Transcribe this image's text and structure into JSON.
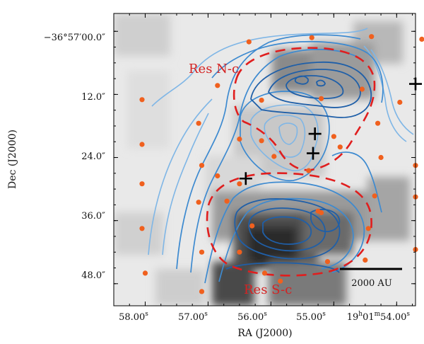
{
  "chart_data": {
    "type": "contour-map",
    "xlabel": "RA (J2000)",
    "ylabel": "Dec (J2000)",
    "x_ticks": [
      {
        "ra_s": 58.0,
        "label": "58.00",
        "sup": "s"
      },
      {
        "ra_s": 57.0,
        "label": "57.00",
        "sup": "s"
      },
      {
        "ra_s": 56.0,
        "label": "56.00",
        "sup": "s"
      },
      {
        "ra_s": 55.0,
        "label": "55.00",
        "sup": "s"
      },
      {
        "ra_s": 54.0,
        "label": "19h01m54.00s",
        "parts": [
          "19",
          "h",
          "01",
          "m",
          "54.00",
          "s"
        ]
      }
    ],
    "y_ticks": [
      {
        "dec_as": 0.0,
        "label": "−36°57′00.0″"
      },
      {
        "dec_as": 12.0,
        "label": "12.0″"
      },
      {
        "dec_as": 24.0,
        "label": "24.0″"
      },
      {
        "dec_as": 36.0,
        "label": "36.0″"
      },
      {
        "dec_as": 48.0,
        "label": "48.0″"
      }
    ],
    "xlim_ra_s": [
      58.5,
      53.7
    ],
    "ylim_dec_as": [
      -3.4,
      52.2
    ],
    "annotations": [
      {
        "text": "Res N-c",
        "ra_s": 56.95,
        "dec_as": 8.7,
        "color": "#d42323"
      },
      {
        "text": "Res S-c",
        "ra_s": 56.05,
        "dec_as": 51.1,
        "color": "#d42323"
      }
    ],
    "scale_bar": {
      "label": "2000 AU",
      "ra_s_start": 54.65,
      "ra_s_end": 53.92,
      "dec_as": 47.0
    },
    "sources_plus": [
      {
        "ra_s": 53.7,
        "dec_as": 10.0
      },
      {
        "ra_s": 55.3,
        "dec_as": 19.5
      },
      {
        "ra_s": 55.33,
        "dec_as": 23.2
      },
      {
        "ra_s": 56.4,
        "dec_as": 28.0
      }
    ],
    "orange_points": [
      {
        "ra_s": 56.35,
        "dec_as": 2.0
      },
      {
        "ra_s": 55.35,
        "dec_as": 1.2
      },
      {
        "ra_s": 54.4,
        "dec_as": 1.0
      },
      {
        "ra_s": 53.6,
        "dec_as": 1.5
      },
      {
        "ra_s": 56.85,
        "dec_as": 10.3
      },
      {
        "ra_s": 56.15,
        "dec_as": 13.1
      },
      {
        "ra_s": 55.2,
        "dec_as": 12.8
      },
      {
        "ra_s": 54.55,
        "dec_as": 11.0
      },
      {
        "ra_s": 53.95,
        "dec_as": 13.5
      },
      {
        "ra_s": 58.05,
        "dec_as": 13.0
      },
      {
        "ra_s": 57.15,
        "dec_as": 17.5
      },
      {
        "ra_s": 56.15,
        "dec_as": 20.8
      },
      {
        "ra_s": 55.0,
        "dec_as": 20.0
      },
      {
        "ra_s": 54.3,
        "dec_as": 17.5
      },
      {
        "ra_s": 58.05,
        "dec_as": 21.5
      },
      {
        "ra_s": 56.5,
        "dec_as": 20.5
      },
      {
        "ra_s": 55.95,
        "dec_as": 23.8
      },
      {
        "ra_s": 54.9,
        "dec_as": 22.0
      },
      {
        "ra_s": 54.25,
        "dec_as": 24.0
      },
      {
        "ra_s": 53.7,
        "dec_as": 25.5
      },
      {
        "ra_s": 57.1,
        "dec_as": 25.5
      },
      {
        "ra_s": 56.85,
        "dec_as": 27.5
      },
      {
        "ra_s": 55.4,
        "dec_as": 26.5
      },
      {
        "ra_s": 58.05,
        "dec_as": 29.0
      },
      {
        "ra_s": 56.5,
        "dec_as": 29.0
      },
      {
        "ra_s": 57.15,
        "dec_as": 32.5
      },
      {
        "ra_s": 56.7,
        "dec_as": 32.3
      },
      {
        "ra_s": 55.25,
        "dec_as": 34.2
      },
      {
        "ra_s": 54.35,
        "dec_as": 31.3
      },
      {
        "ra_s": 53.7,
        "dec_as": 31.5
      },
      {
        "ra_s": 58.05,
        "dec_as": 37.5
      },
      {
        "ra_s": 56.3,
        "dec_as": 37.0
      },
      {
        "ra_s": 55.2,
        "dec_as": 34.5
      },
      {
        "ra_s": 54.45,
        "dec_as": 37.5
      },
      {
        "ra_s": 57.1,
        "dec_as": 42.0
      },
      {
        "ra_s": 56.5,
        "dec_as": 42.0
      },
      {
        "ra_s": 55.1,
        "dec_as": 43.8
      },
      {
        "ra_s": 54.5,
        "dec_as": 43.5
      },
      {
        "ra_s": 53.7,
        "dec_as": 41.5
      },
      {
        "ra_s": 58.0,
        "dec_as": 46.0
      },
      {
        "ra_s": 56.1,
        "dec_as": 46.0
      },
      {
        "ra_s": 55.85,
        "dec_as": 47.5
      },
      {
        "ra_s": 57.1,
        "dec_as": 49.5
      }
    ],
    "colors": {
      "contour_dark": "#1f5fa8",
      "contour_mid": "#3d8ad0",
      "contour_light": "#7fb6e6",
      "dashed": "#e01e1e",
      "points": "#f0601e",
      "plus": "#000000"
    }
  }
}
